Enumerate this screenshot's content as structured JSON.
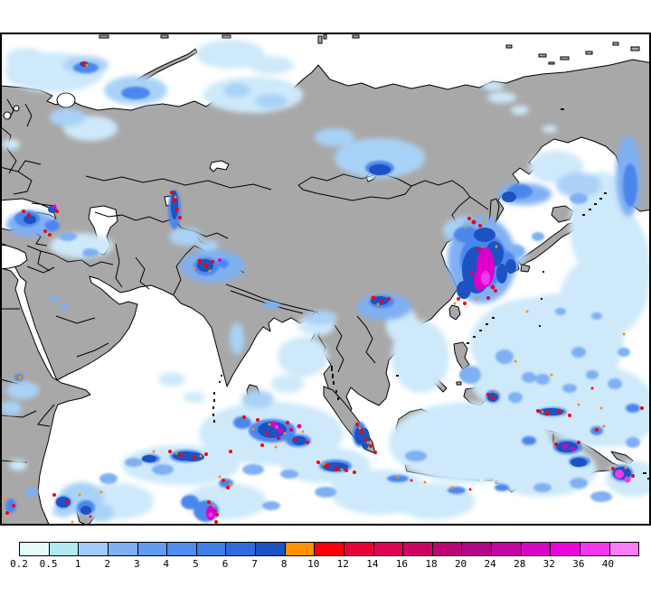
{
  "legend": {
    "tick_labels": [
      "0.2",
      "0.5",
      "1",
      "2",
      "3",
      "4",
      "5",
      "6",
      "7",
      "8",
      "10",
      "12",
      "14",
      "16",
      "18",
      "20",
      "24",
      "28",
      "32",
      "36",
      "40"
    ],
    "segment_colors": [
      "#E4FBF9",
      "#AEEBF2",
      "#A3CBF9",
      "#7FAFF4",
      "#639BF1",
      "#4F8DEF",
      "#3E7FEA",
      "#2E6BE0",
      "#1C52C2",
      "#FF9000",
      "#FB0007",
      "#E80436",
      "#DC0653",
      "#CC0561",
      "#BC0575",
      "#B30689",
      "#C306A6",
      "#D705C5",
      "#EB04DC",
      "#F635EE",
      "#FB7DF6"
    ]
  },
  "map_colors": {
    "land": "#A8A8A8",
    "ocean": "#FFFFFF",
    "coastline": "#000000",
    "precip_light": "#CDE9FA",
    "precip_moderate": "#4C86EC",
    "precip_heavy": "#1C52C2",
    "precip_orange": "#FF9000",
    "precip_red": "#FB0007",
    "precip_magenta": "#DC00C8",
    "precip_pink": "#F635EE"
  }
}
